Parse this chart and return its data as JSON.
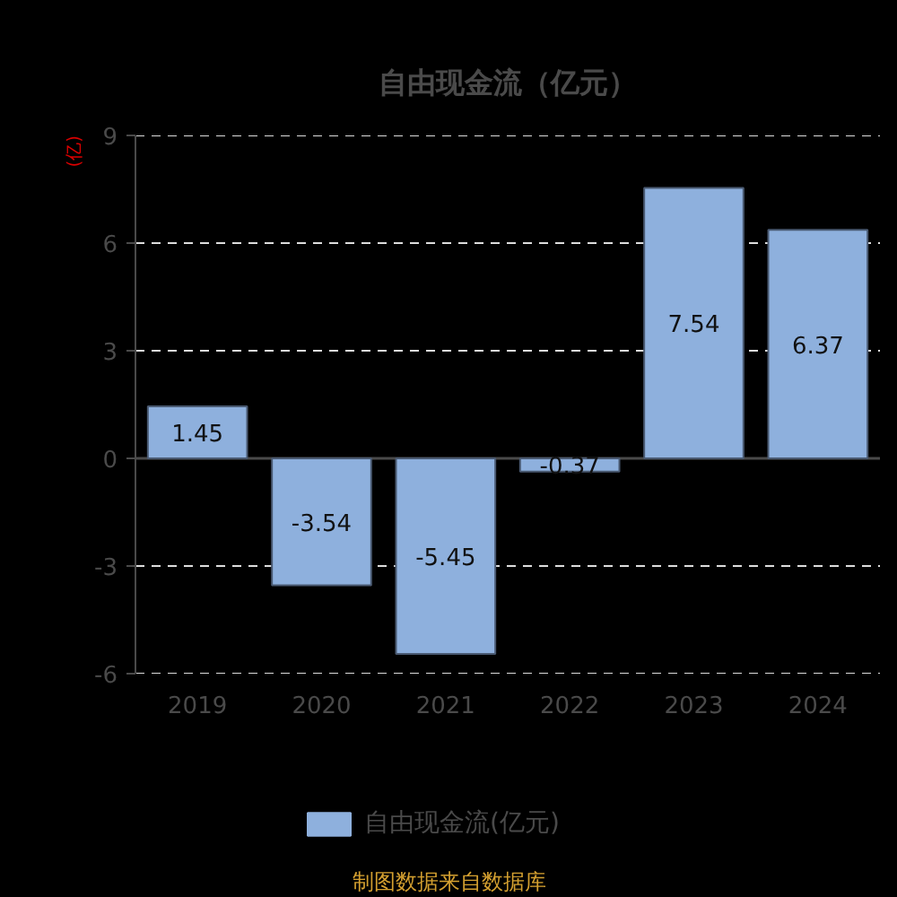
{
  "chart_data": {
    "type": "bar",
    "title": "自由现金流（亿元）",
    "ylabel": "(亿)",
    "categories": [
      "2019",
      "2020",
      "2021",
      "2022",
      "2023",
      "2024"
    ],
    "series": [
      {
        "name": "自由现金流(亿元)",
        "color": "#8eb0dd",
        "values": [
          1.45,
          -3.54,
          -5.45,
          -0.37,
          7.54,
          6.37
        ]
      }
    ],
    "ylim": [
      -6,
      9
    ],
    "yticks": [
      -6,
      -3,
      0,
      3,
      6,
      9
    ],
    "grid": "y",
    "legend": "bottom",
    "data_labels": true,
    "annotations": [
      "制图数据来自数据库"
    ]
  }
}
